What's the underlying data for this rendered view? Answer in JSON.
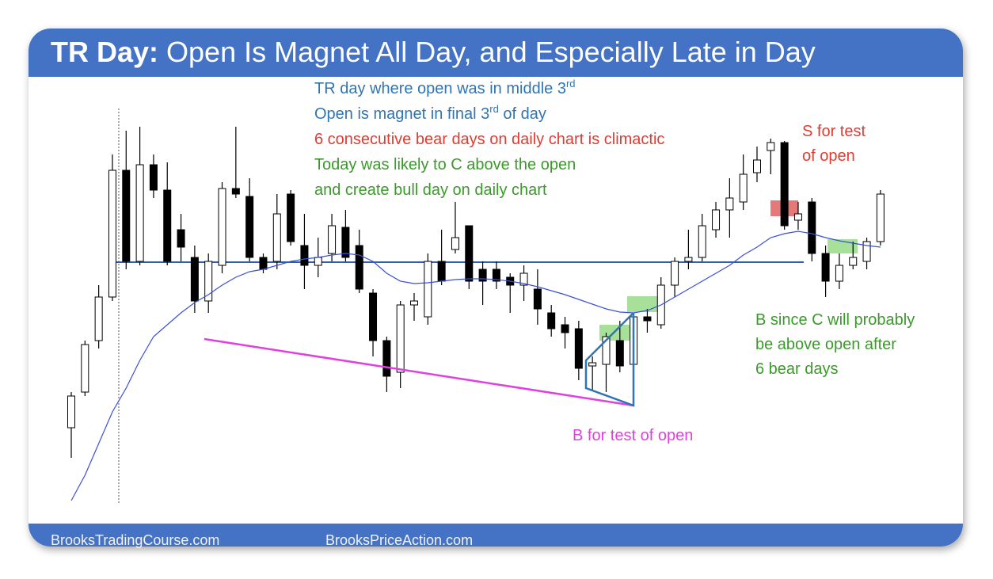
{
  "chart_data": {
    "type": "candlestick",
    "title_bold": "TR Day:",
    "title": "Open Is Magnet All Day, and Especially Late in Day",
    "ylim": [
      0,
      500
    ],
    "open": [
      100,
      145,
      210,
      265,
      425,
      310,
      432,
      400,
      350,
      315,
      260,
      305,
      402,
      392,
      315,
      310,
      395,
      330,
      305,
      320,
      353,
      330,
      270,
      210,
      170,
      255,
      240,
      310,
      325,
      355,
      300,
      300,
      290,
      280,
      275,
      245,
      230,
      225,
      178,
      180,
      210,
      180,
      240,
      230,
      280,
      310,
      315,
      350,
      375,
      385,
      422,
      450,
      460,
      362,
      385,
      320,
      285,
      305,
      310,
      335
    ],
    "high": [
      145,
      210,
      280,
      445,
      475,
      480,
      445,
      435,
      370,
      330,
      320,
      410,
      480,
      415,
      320,
      395,
      400,
      370,
      340,
      370,
      375,
      350,
      275,
      215,
      260,
      270,
      320,
      350,
      385,
      355,
      310,
      310,
      295,
      305,
      300,
      255,
      240,
      235,
      190,
      220,
      235,
      245,
      250,
      290,
      315,
      350,
      370,
      385,
      415,
      445,
      455,
      465,
      462,
      385,
      390,
      330,
      320,
      335,
      340,
      400
    ],
    "low": [
      62,
      140,
      200,
      260,
      300,
      305,
      390,
      305,
      310,
      245,
      245,
      295,
      390,
      310,
      295,
      300,
      330,
      275,
      290,
      310,
      310,
      270,
      190,
      145,
      150,
      235,
      230,
      280,
      320,
      275,
      255,
      275,
      245,
      260,
      230,
      215,
      200,
      160,
      148,
      145,
      170,
      128,
      220,
      225,
      265,
      300,
      310,
      340,
      340,
      375,
      410,
      420,
      350,
      350,
      310,
      265,
      275,
      300,
      300,
      330
    ],
    "close": [
      140,
      205,
      265,
      425,
      310,
      432,
      400,
      310,
      328,
      260,
      310,
      402,
      395,
      315,
      300,
      370,
      335,
      305,
      315,
      355,
      315,
      275,
      210,
      165,
      255,
      260,
      310,
      285,
      340,
      285,
      285,
      285,
      280,
      295,
      250,
      225,
      220,
      175,
      182,
      215,
      178,
      240,
      235,
      280,
      310,
      315,
      355,
      375,
      390,
      420,
      438,
      460,
      355,
      370,
      320,
      285,
      305,
      315,
      335,
      395
    ],
    "moving_average": [
      8,
      40,
      80,
      120,
      150,
      185,
      215,
      230,
      245,
      258,
      268,
      280,
      290,
      297,
      300,
      305,
      310,
      313,
      315,
      318,
      320,
      318,
      310,
      295,
      285,
      282,
      283,
      285,
      287,
      288,
      288,
      287,
      285,
      282,
      278,
      273,
      268,
      262,
      256,
      250,
      246,
      245,
      248,
      255,
      265,
      275,
      285,
      295,
      305,
      318,
      328,
      340,
      345,
      348,
      345,
      340,
      336,
      333,
      330,
      328
    ],
    "open_level": 309,
    "bull_color": "#ffffff",
    "bear_color": "#000000",
    "ma_color": "#3a4fd8",
    "open_line_color": "#2e5fa8",
    "annotations": [
      {
        "text": "TR day where open was in middle 3",
        "sup": "rd",
        "color": "#2e75b6"
      },
      {
        "text": "Open is magnet in final 3",
        "sup": "rd",
        "rest": " of day",
        "color": "#2e75b6"
      },
      {
        "text": "6 consecutive bear days on daily chart is climactic",
        "color": "#e03c31"
      },
      {
        "text": "Today was likely to C above the open",
        "color": "#3a9a2a"
      },
      {
        "text": "and create bull day on daily chart",
        "color": "#3a9a2a"
      }
    ],
    "notes": [
      {
        "lines": [
          "S for test",
          "of open"
        ],
        "color": "#e03c31"
      },
      {
        "lines": [
          "B since C will probably",
          "be above open after",
          "6 bear days"
        ],
        "color": "#3a9a2a"
      },
      {
        "lines": [
          "B for test of open"
        ],
        "color": "#e040e0"
      }
    ],
    "footer": [
      "BrooksTradingCourse.com",
      "BrooksPriceAction.com"
    ]
  }
}
